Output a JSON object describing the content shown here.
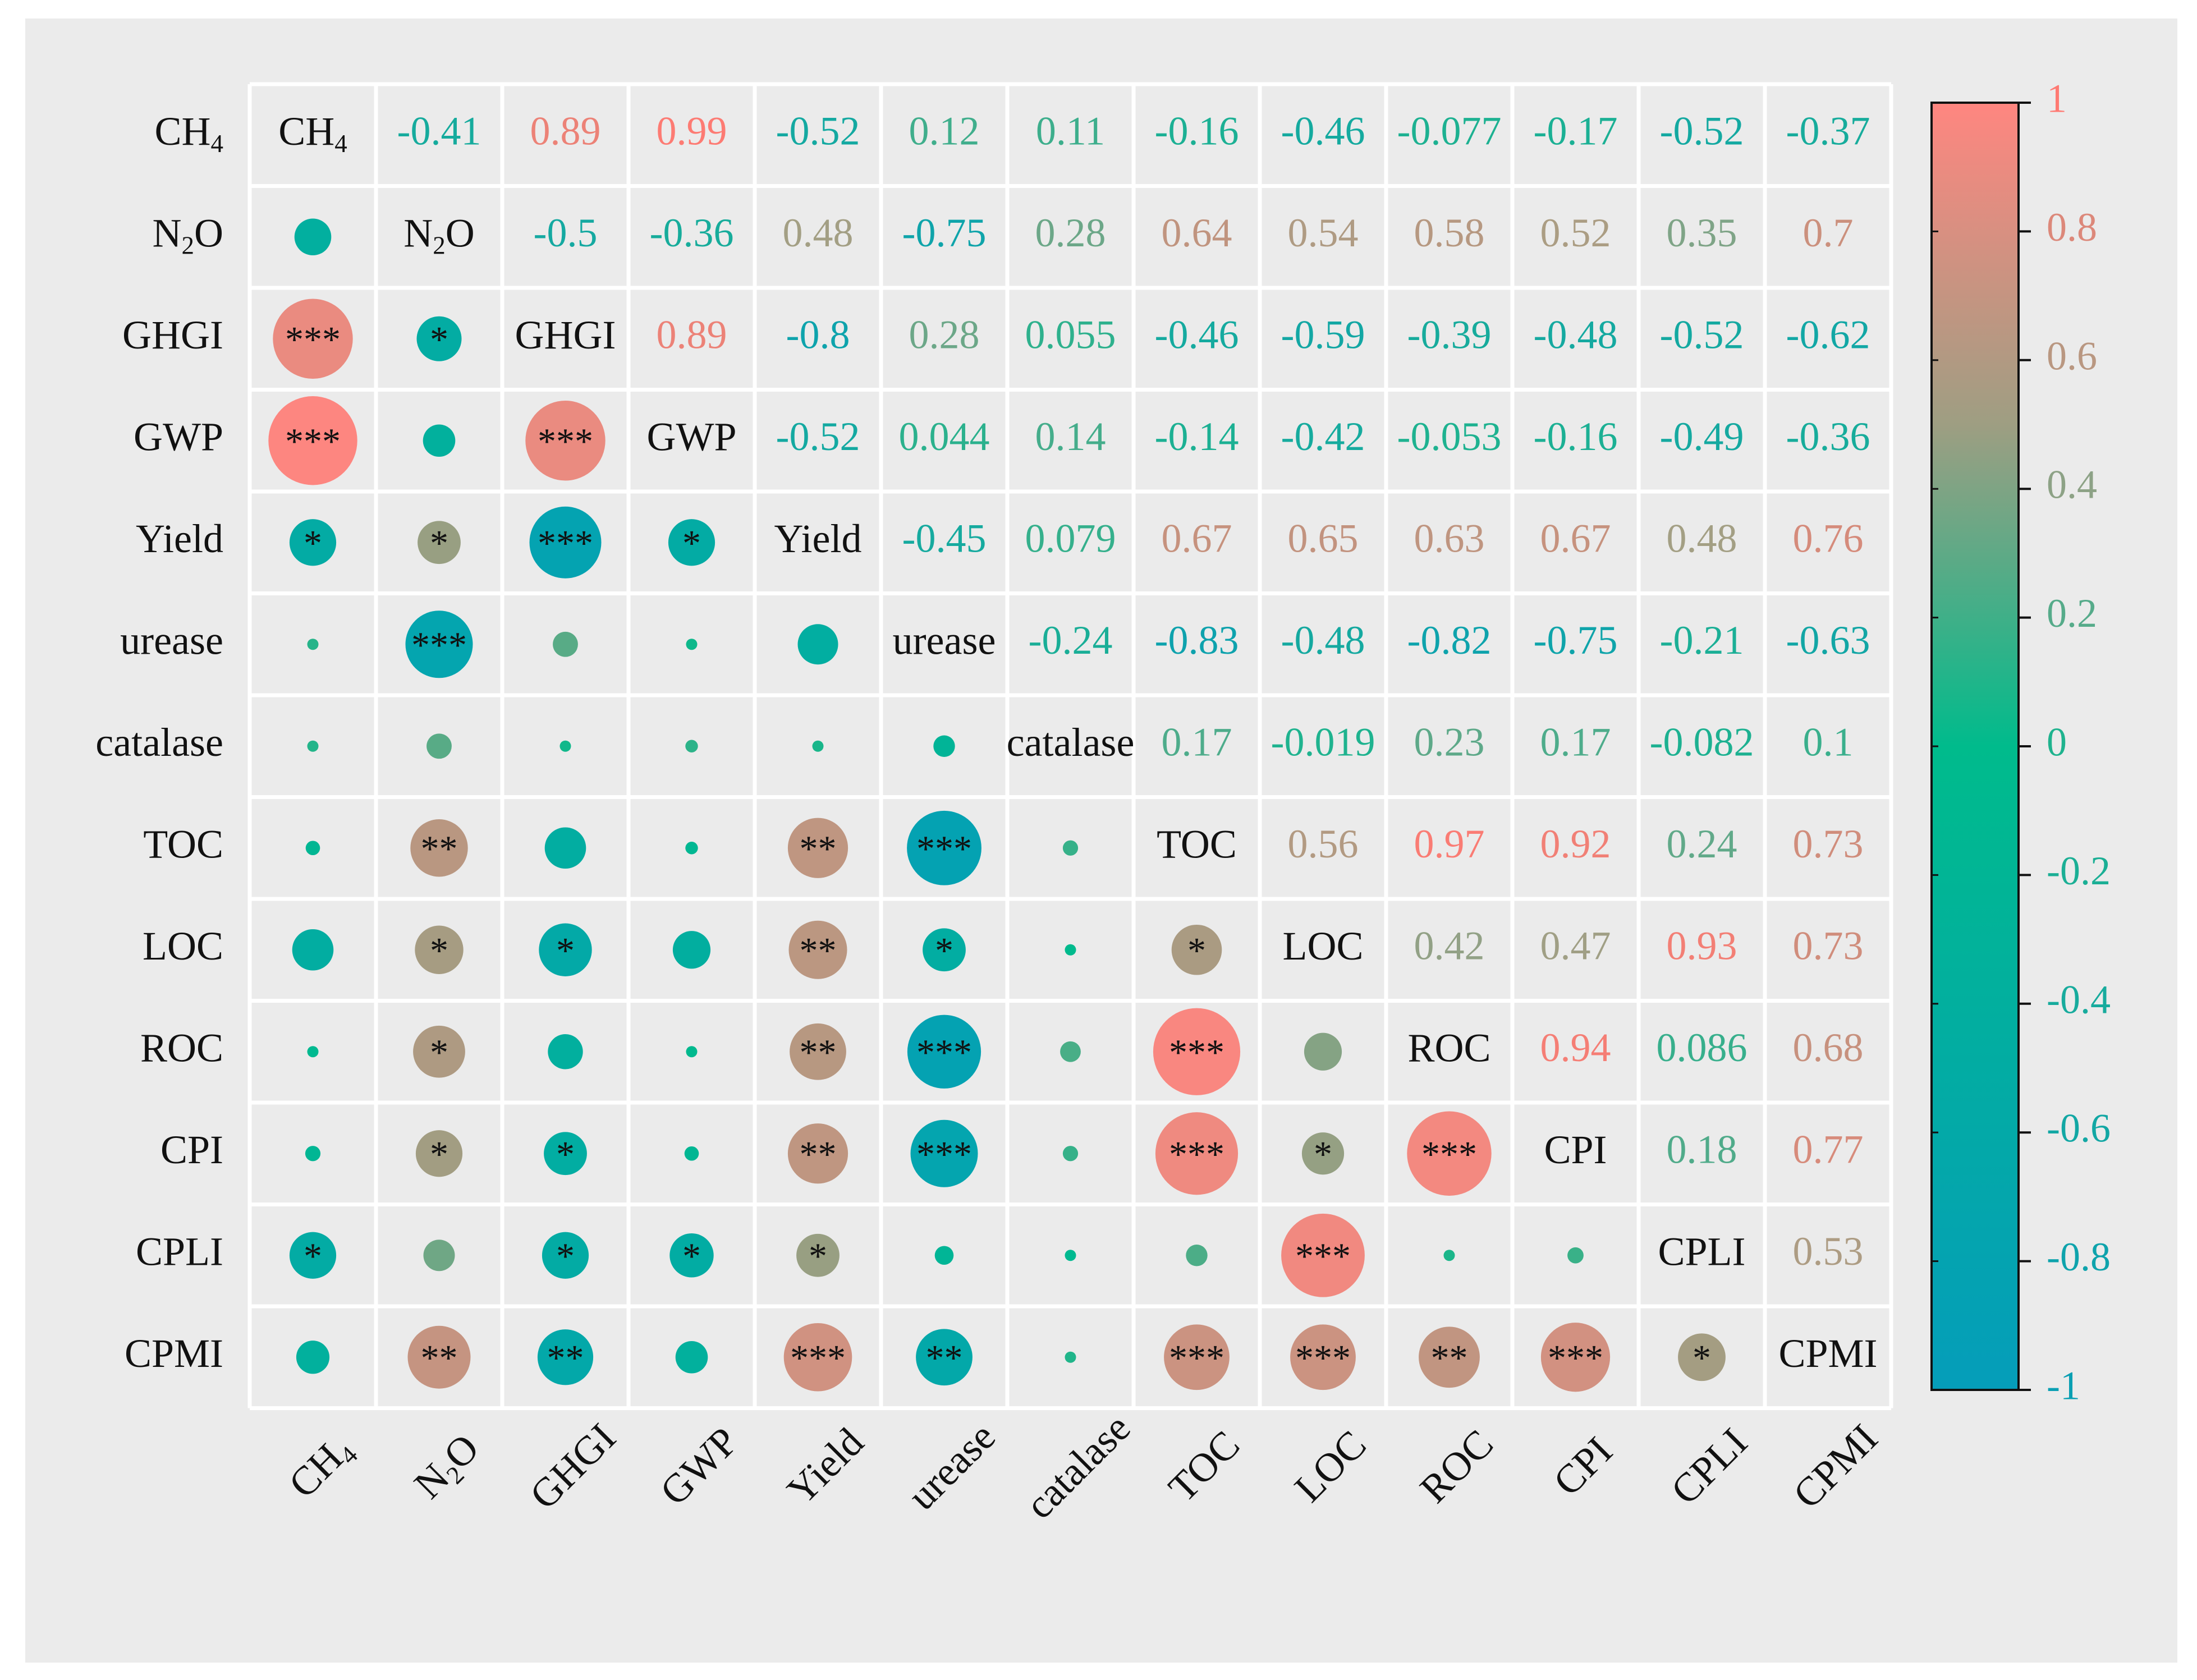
{
  "chart_data": {
    "type": "heatmap",
    "subtype": "correlation-matrix",
    "variables": [
      {
        "label": "CH",
        "sub": "4"
      },
      {
        "label": "N",
        "sub": "2",
        "suffix": "O"
      },
      {
        "label": "GHGI"
      },
      {
        "label": "GWP"
      },
      {
        "label": "Yield"
      },
      {
        "label": "urease"
      },
      {
        "label": "catalase"
      },
      {
        "label": "TOC"
      },
      {
        "label": "LOC"
      },
      {
        "label": "ROC"
      },
      {
        "label": "CPI"
      },
      {
        "label": "CPLI"
      },
      {
        "label": "CPMI"
      }
    ],
    "upper_triangle_labels": [
      [
        "",
        "-0.41",
        "0.89",
        "0.99",
        "-0.52",
        "0.12",
        "0.11",
        "-0.16",
        "-0.46",
        "-0.077",
        "-0.17",
        "-0.52",
        "-0.37"
      ],
      [
        "",
        "",
        "-0.5",
        "-0.36",
        "0.48",
        "-0.75",
        "0.28",
        "0.64",
        "0.54",
        "0.58",
        "0.52",
        "0.35",
        "0.7"
      ],
      [
        "",
        "",
        "",
        "0.89",
        "-0.8",
        "0.28",
        "0.055",
        "-0.46",
        "-0.59",
        "-0.39",
        "-0.48",
        "-0.52",
        "-0.62"
      ],
      [
        "",
        "",
        "",
        "",
        "-0.52",
        "0.044",
        "0.14",
        "-0.14",
        "-0.42",
        "-0.053",
        "-0.16",
        "-0.49",
        "-0.36"
      ],
      [
        "",
        "",
        "",
        "",
        "",
        "-0.45",
        "0.079",
        "0.67",
        "0.65",
        "0.63",
        "0.67",
        "0.48",
        "0.76"
      ],
      [
        "",
        "",
        "",
        "",
        "",
        "",
        "-0.24",
        "-0.83",
        "-0.48",
        "-0.82",
        "-0.75",
        "-0.21",
        "-0.63"
      ],
      [
        "",
        "",
        "",
        "",
        "",
        "",
        "",
        "0.17",
        "-0.019",
        "0.23",
        "0.17",
        "-0.082",
        "0.1"
      ],
      [
        "",
        "",
        "",
        "",
        "",
        "",
        "",
        "",
        "0.56",
        "0.97",
        "0.92",
        "0.24",
        "0.73"
      ],
      [
        "",
        "",
        "",
        "",
        "",
        "",
        "",
        "",
        "",
        "0.42",
        "0.47",
        "0.93",
        "0.73"
      ],
      [
        "",
        "",
        "",
        "",
        "",
        "",
        "",
        "",
        "",
        "",
        "0.94",
        "0.086",
        "0.68"
      ],
      [
        "",
        "",
        "",
        "",
        "",
        "",
        "",
        "",
        "",
        "",
        "",
        "0.18",
        "0.77"
      ],
      [
        "",
        "",
        "",
        "",
        "",
        "",
        "",
        "",
        "",
        "",
        "",
        "",
        "0.53"
      ],
      [
        "",
        "",
        "",
        "",
        "",
        "",
        "",
        "",
        "",
        "",
        "",
        "",
        ""
      ]
    ],
    "significance": [
      [
        "",
        "",
        "",
        "",
        "",
        "",
        "",
        "",
        "",
        "",
        "",
        "",
        ""
      ],
      [
        "",
        "",
        "",
        "",
        "",
        "",
        "",
        "",
        "",
        "",
        "",
        "",
        ""
      ],
      [
        "***",
        "*",
        "",
        "",
        "",
        "",
        "",
        "",
        "",
        "",
        "",
        "",
        ""
      ],
      [
        "***",
        "",
        "***",
        "",
        "",
        "",
        "",
        "",
        "",
        "",
        "",
        "",
        ""
      ],
      [
        "*",
        "*",
        "***",
        "*",
        "",
        "",
        "",
        "",
        "",
        "",
        "",
        "",
        ""
      ],
      [
        "",
        "***",
        "",
        "",
        "",
        "",
        "",
        "",
        "",
        "",
        "",
        "",
        ""
      ],
      [
        "",
        "",
        "",
        "",
        "",
        "",
        "",
        "",
        "",
        "",
        "",
        "",
        ""
      ],
      [
        "",
        "**",
        "",
        "",
        "**",
        "***",
        "",
        "",
        "",
        "",
        "",
        "",
        ""
      ],
      [
        "",
        "*",
        "*",
        "",
        "**",
        "*",
        "",
        "*",
        "",
        "",
        "",
        "",
        ""
      ],
      [
        "",
        "*",
        "",
        "",
        "**",
        "***",
        "",
        "***",
        "",
        "",
        "",
        "",
        ""
      ],
      [
        "",
        "*",
        "*",
        "",
        "**",
        "***",
        "",
        "***",
        "*",
        "***",
        "",
        "",
        ""
      ],
      [
        "*",
        "",
        "*",
        "*",
        "*",
        "",
        "",
        "",
        "***",
        "",
        "",
        "",
        ""
      ],
      [
        "",
        "**",
        "**",
        "",
        "***",
        "**",
        "",
        "***",
        "***",
        "**",
        "***",
        "*",
        ""
      ]
    ],
    "colorbar": {
      "range": [
        -1,
        1
      ],
      "ticks": [
        "1",
        "0.8",
        "0.6",
        "0.4",
        "0.2",
        "0",
        "-0.2",
        "-0.4",
        "-0.6",
        "-0.8",
        "-1"
      ],
      "colors": {
        "low": "#059DBA",
        "mid": "#00BB8C",
        "high": "#FF8680"
      }
    }
  }
}
